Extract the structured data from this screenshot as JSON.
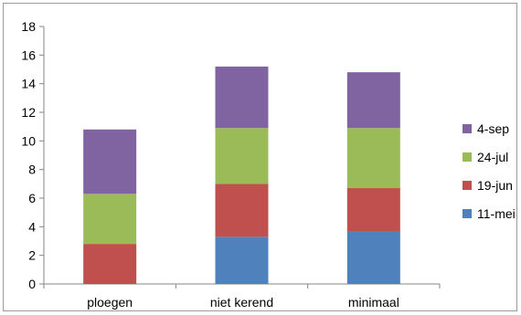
{
  "chart_data": {
    "type": "bar",
    "stacked": true,
    "categories": [
      "ploegen",
      "niet kerend",
      "minimaal"
    ],
    "series": [
      {
        "name": "11-mei",
        "color": "#4f81bd",
        "values": [
          0,
          3.3,
          3.7
        ]
      },
      {
        "name": "19-jun",
        "color": "#c0504d",
        "values": [
          2.8,
          3.7,
          3.0
        ]
      },
      {
        "name": "24-jul",
        "color": "#9bbb59",
        "values": [
          3.5,
          3.9,
          4.2
        ]
      },
      {
        "name": "4-sep",
        "color": "#8064a2",
        "values": [
          4.5,
          4.3,
          3.9
        ]
      }
    ],
    "ylim": [
      0,
      18
    ],
    "yticks": [
      0,
      2,
      4,
      6,
      8,
      10,
      12,
      14,
      16,
      18
    ],
    "grid": false,
    "legend_position": "right",
    "legend_order": [
      "4-sep",
      "24-jul",
      "19-jun",
      "11-mei"
    ]
  }
}
